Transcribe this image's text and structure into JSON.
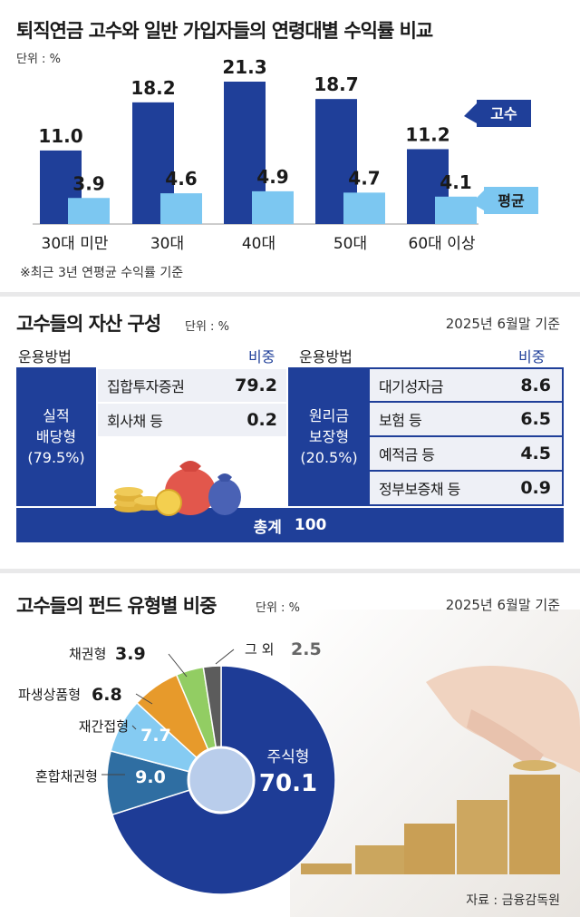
{
  "panel1": {
    "title": "퇴직연금 고수와 일반 가입자들의 연령대별 수익률 비교",
    "unit": "단위 : %",
    "footnote": "※최근 3년 연평균 수익률 기준"
  },
  "panel2": {
    "title": "고수들의 자산 구성",
    "unit": "단위 : %",
    "date": "2025년 6월말 기준",
    "header_method": "운용방법",
    "header_weight": "비중",
    "left_group": {
      "name_line1": "실적",
      "name_line2": "배당형",
      "name_pct": "(79.5%)"
    },
    "left_rows": [
      {
        "label": "집합투자증권",
        "value": "79.2"
      },
      {
        "label": "회사채 등",
        "value": "0.2"
      }
    ],
    "right_group": {
      "name_line1": "원리금",
      "name_line2": "보장형",
      "name_pct": "(20.5%)"
    },
    "right_rows": [
      {
        "label": "대기성자금",
        "value": "8.6"
      },
      {
        "label": "보험 등",
        "value": "6.5"
      },
      {
        "label": "예적금 등",
        "value": "4.5"
      },
      {
        "label": "정부보증채 등",
        "value": "0.9"
      }
    ],
    "total_label": "총계",
    "total_value": "100"
  },
  "panel3": {
    "title": "고수들의 펀드 유형별 비중",
    "unit": "단위 : %",
    "date": "2025년 6월말 기준",
    "source": "자료 : 금융감독원"
  },
  "colors": {
    "gosu": "#1f3f99",
    "avg": "#7cc7f1",
    "table_dark": "#1f3f99",
    "row_bg": "#eef0f6"
  },
  "chart_data": [
    {
      "type": "bar",
      "categories": [
        "30대 미만",
        "30대",
        "40대",
        "50대",
        "60대 이상"
      ],
      "series": [
        {
          "name": "고수",
          "values": [
            11.0,
            18.2,
            21.3,
            18.7,
            11.2
          ],
          "color": "#1f3f99"
        },
        {
          "name": "평균",
          "values": [
            3.9,
            4.6,
            4.9,
            4.7,
            4.1
          ],
          "color": "#7cc7f1"
        }
      ],
      "ylim": [
        0,
        23
      ],
      "grid": false,
      "legend": "right"
    },
    {
      "type": "pie",
      "labels": [
        "주식형",
        "혼합채권형",
        "재간접형",
        "파생상품형",
        "채권형",
        "그 외"
      ],
      "values": [
        70.1,
        9.0,
        7.7,
        6.8,
        3.9,
        2.5
      ],
      "value_labels": [
        "70.1",
        "9.0",
        "7.7",
        "6.8",
        "3.9",
        "2.5"
      ],
      "colors": [
        "#1e3c96",
        "#2f6ea2",
        "#85cbf2",
        "#e79a2b",
        "#92cd63",
        "#5c5c5c"
      ]
    }
  ]
}
